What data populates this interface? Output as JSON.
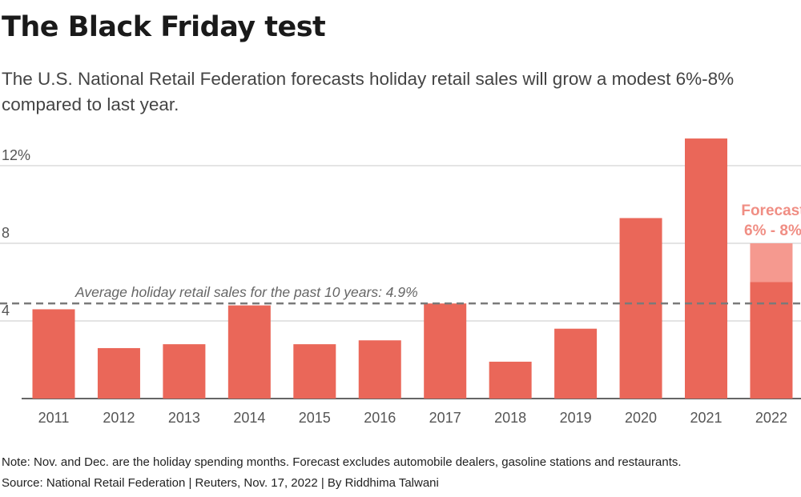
{
  "title": "The Black Friday test",
  "subtitle": "The U.S. National Retail Federation forecasts holiday retail sales will grow a modest 6%-8% compared to last year.",
  "note": "Note: Nov. and Dec. are the holiday spending months. Forecast excludes automobile dealers, gasoline stations and restaurants.",
  "source": "Source: National Retail Federation | Reuters, Nov. 17, 2022 | By Riddhima Talwani",
  "colors": {
    "bar": "#ea6759",
    "forecast_range": "#f5998f",
    "forecast_label": "#f08e84",
    "grid": "#c8c8c8",
    "avg_line": "#7a7a7a",
    "axis_text": "#555555"
  },
  "chart_data": {
    "type": "bar",
    "title": "The Black Friday test",
    "xlabel": "",
    "ylabel": "",
    "ylim": [
      0,
      13.5
    ],
    "yticks": [
      4,
      8,
      12
    ],
    "ytick_labels": [
      "4",
      "8",
      "12%"
    ],
    "categories": [
      "2011",
      "2012",
      "2013",
      "2014",
      "2015",
      "2016",
      "2017",
      "2018",
      "2019",
      "2020",
      "2021",
      "2022"
    ],
    "values": [
      4.6,
      2.6,
      2.8,
      4.8,
      2.8,
      3.0,
      4.9,
      1.9,
      3.6,
      9.3,
      13.4,
      6.0
    ],
    "forecast": {
      "category": "2022",
      "low": 6,
      "high": 8,
      "label_line1": "Forecast",
      "label_line2": "6% - 8%"
    },
    "reference_line": {
      "value": 4.9,
      "label": "Average holiday retail sales for the past 10 years: 4.9%"
    },
    "grid": true
  }
}
